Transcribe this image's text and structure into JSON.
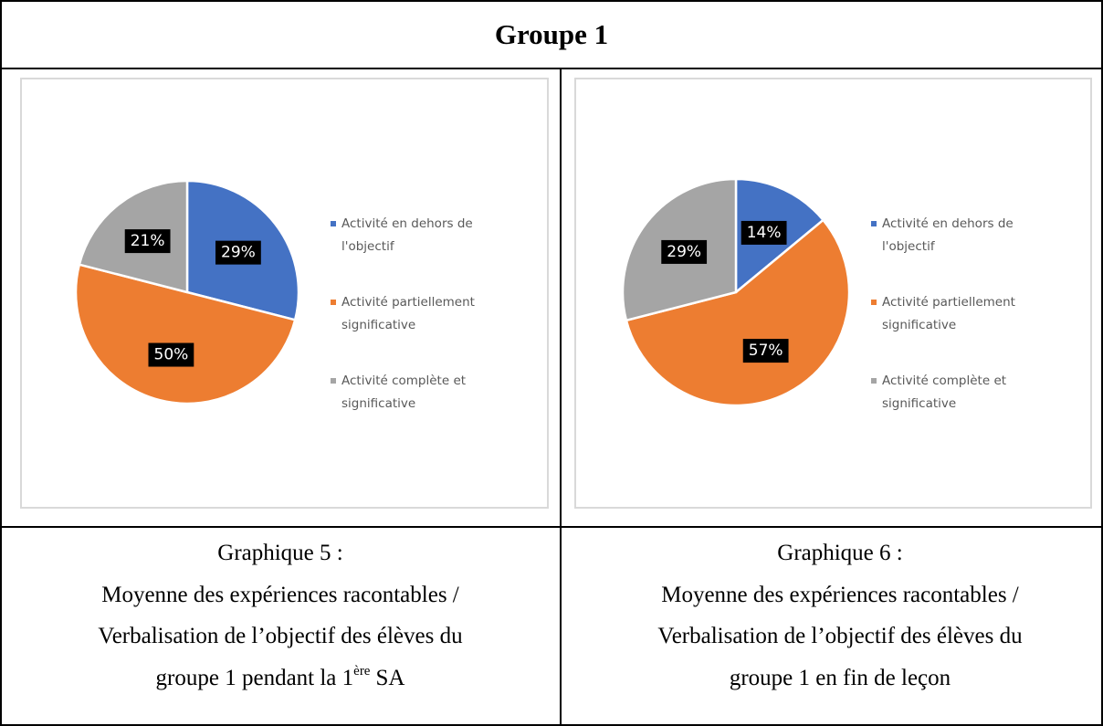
{
  "title": "Groupe 1",
  "chart_data": [
    {
      "type": "pie",
      "categories": [
        "Activité en dehors de l'objectif",
        "Activité partiellement significative",
        "Activité complète et significative"
      ],
      "values": [
        29,
        50,
        21
      ],
      "value_labels": [
        "29%",
        "50%",
        "21%"
      ],
      "colors": [
        "#4472c4",
        "#ed7d31",
        "#a5a5a5"
      ],
      "legend": "right"
    },
    {
      "type": "pie",
      "categories": [
        "Activité en dehors de l'objectif",
        "Activité partiellement significative",
        "Activité complète et significative"
      ],
      "values": [
        14,
        57,
        29
      ],
      "value_labels": [
        "14%",
        "57%",
        "29%"
      ],
      "colors": [
        "#4472c4",
        "#ed7d31",
        "#a5a5a5"
      ],
      "legend": "right"
    }
  ],
  "captions": [
    {
      "label": "Graphique 5 :",
      "lines": [
        "Moyenne des expériences racontables /",
        "Verbalisation de l’objectif des élèves du",
        "groupe 1 pendant la 1"
      ],
      "sup": "ère",
      "tail": "SA"
    },
    {
      "label": "Graphique 6 :",
      "lines": [
        "Moyenne des expériences racontables /",
        "Verbalisation de l’objectif des élèves du",
        "groupe 1 en fin de leçon"
      ]
    }
  ]
}
